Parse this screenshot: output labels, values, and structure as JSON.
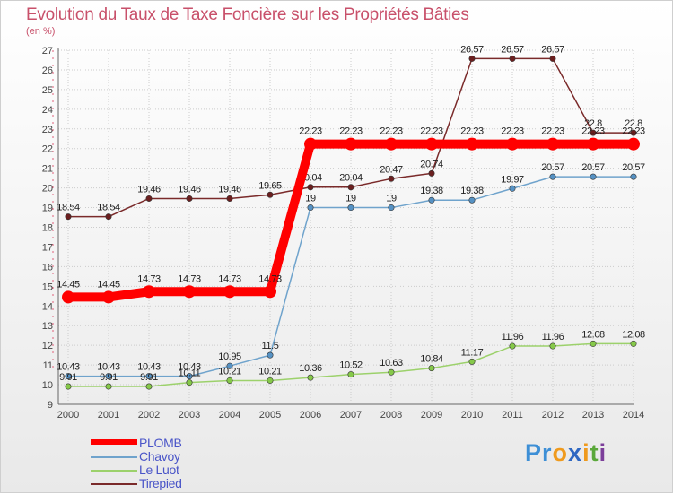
{
  "title": "Evolution du Taux de Taxe Foncière sur les Propriétés Bâties",
  "unit": "(en %)",
  "logo": {
    "letters": [
      "P",
      "r",
      "o",
      "x",
      "i",
      "t",
      "i"
    ],
    "colors": [
      "#3d8fd6",
      "#3d8fd6",
      "#ef9a1d",
      "#2e67c2",
      "#ef9a1d",
      "#5aa83a",
      "#7c3e9a"
    ]
  },
  "chart_data": {
    "type": "line",
    "title": "Evolution du Taux de Taxe Foncière sur les Propriétés Bâties",
    "ylabel": "(en %)",
    "xlabel": "",
    "ylim": [
      9,
      27
    ],
    "yticks": [
      "9",
      "10",
      "11",
      "12",
      "13",
      "14",
      "15",
      "16",
      "17",
      "18",
      "19",
      "20",
      "21",
      "22",
      "23",
      "24",
      "25",
      "26",
      "27"
    ],
    "categories": [
      "2000",
      "2001",
      "2002",
      "2003",
      "2004",
      "2005",
      "2006",
      "2007",
      "2008",
      "2009",
      "2010",
      "2011",
      "2012",
      "2013",
      "2014"
    ],
    "grid": true,
    "legend_position": "bottom-left",
    "series": [
      {
        "name": "Tirepied",
        "color": "#7a2a2a",
        "marker": "#6b1f1f",
        "values": [
          18.54,
          18.54,
          19.46,
          19.46,
          19.46,
          19.65,
          20.04,
          20.04,
          20.47,
          20.74,
          26.57,
          26.57,
          26.57,
          22.8,
          22.8
        ],
        "labels": [
          "18.54",
          "18.54",
          "19.46",
          "19.46",
          "19.46",
          "19.65",
          "20.04",
          "20.04",
          "20.47",
          "20.74",
          "26.57",
          "26.57",
          "26.57",
          "22.8",
          "22.8"
        ]
      },
      {
        "name": "Chavoy",
        "color": "#6fa3cc",
        "marker": "#5692c4",
        "values": [
          10.43,
          10.43,
          10.43,
          10.43,
          10.95,
          11.5,
          19,
          19,
          19,
          19.38,
          19.38,
          19.97,
          20.57,
          20.57,
          20.57
        ],
        "labels": [
          "10.43",
          "10.43",
          "10.43",
          "10.43",
          "10.95",
          "11.5",
          "19",
          "19",
          "19",
          "19.38",
          "19.38",
          "19.97",
          "20.57",
          "20.57",
          "20.57"
        ]
      },
      {
        "name": "Le Luot",
        "color": "#9cd16b",
        "marker": "#86c94a",
        "values": [
          9.91,
          9.91,
          9.91,
          10.11,
          10.21,
          10.21,
          10.36,
          10.52,
          10.63,
          10.84,
          11.17,
          11.96,
          11.96,
          12.08,
          12.08
        ],
        "labels": [
          "9.91",
          "9.91",
          "9.91",
          "10.11",
          "10.21",
          "10.21",
          "10.36",
          "10.52",
          "10.63",
          "10.84",
          "11.17",
          "11.96",
          "11.96",
          "12.08",
          "12.08"
        ]
      },
      {
        "name": "PLOMB",
        "color": "#ff0000",
        "marker": "#ff0000",
        "bold": true,
        "values": [
          14.45,
          14.45,
          14.73,
          14.73,
          14.73,
          14.73,
          22.23,
          22.23,
          22.23,
          22.23,
          22.23,
          22.23,
          22.23,
          22.23,
          22.23
        ],
        "labels": [
          "14.45",
          "14.45",
          "14.73",
          "14.73",
          "14.73",
          "14.73",
          "22.23",
          "22.23",
          "22.23",
          "22.23",
          "22.23",
          "22.23",
          "22.23",
          "22.23",
          "22.23"
        ]
      }
    ]
  },
  "legend": [
    {
      "name": "PLOMB",
      "color": "#ff0000",
      "width": 6
    },
    {
      "name": "Chavoy",
      "color": "#6fa3cc",
      "width": 2
    },
    {
      "name": "Le Luot",
      "color": "#9cd16b",
      "width": 2
    },
    {
      "name": "Tirepied",
      "color": "#7a2a2a",
      "width": 2
    }
  ]
}
